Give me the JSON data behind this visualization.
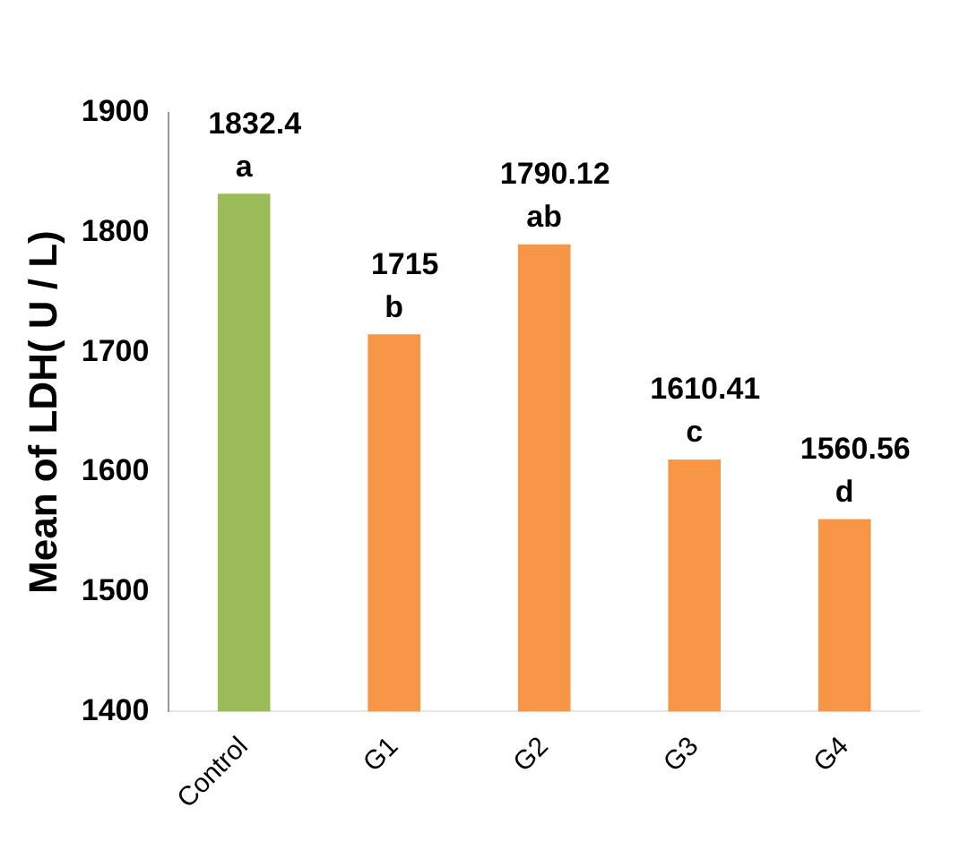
{
  "chart_data": {
    "type": "bar",
    "ylabel": "Mean of LDH( U / L)",
    "categories": [
      "Control",
      "G1",
      "G2",
      "G3",
      "G4"
    ],
    "values": [
      1832.4,
      1715,
      1790.12,
      1610.41,
      1560.56
    ],
    "colors": [
      "#9bbb59",
      "#f79646",
      "#f79646",
      "#f79646",
      "#f79646"
    ],
    "ylim": [
      1400,
      1900
    ],
    "yticks": [
      1400,
      1500,
      1600,
      1700,
      1800,
      1900
    ],
    "data_labels": true,
    "annotations": [
      {
        "text": "a",
        "x": "Control",
        "y": 1832.4
      },
      {
        "text": "b",
        "x": "G1",
        "y": 1715
      },
      {
        "text": "ab",
        "x": "G2",
        "y": 1790.12
      },
      {
        "text": "c",
        "x": "G3",
        "y": 1610.41
      },
      {
        "text": "d",
        "x": "G4",
        "y": 1560.56
      }
    ]
  }
}
